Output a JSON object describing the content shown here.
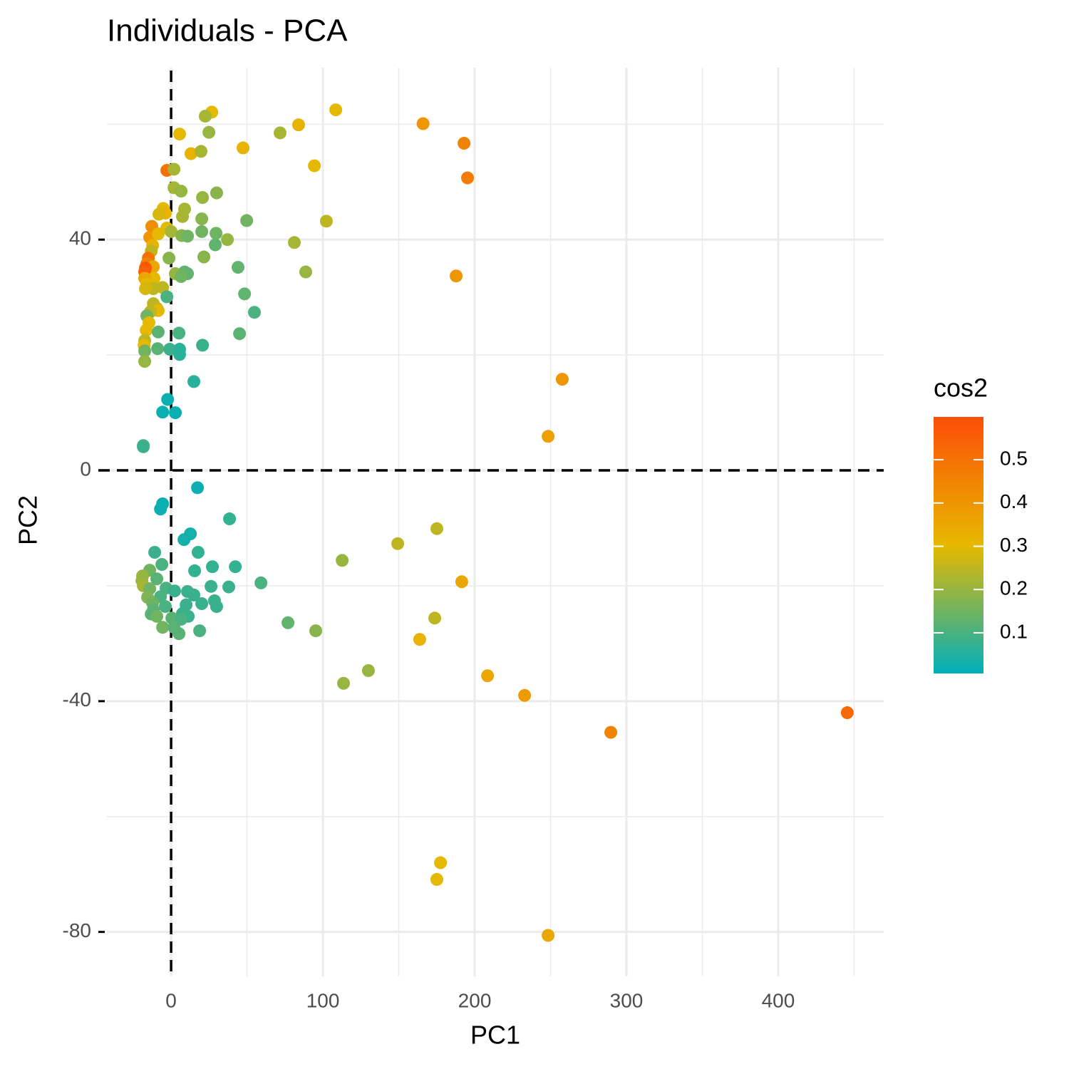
{
  "chart_data": {
    "type": "scatter",
    "title": "Individuals - PCA",
    "x_label": "PC1",
    "y_label": "PC2",
    "xlim": [
      -42.3,
      469.5
    ],
    "ylim": [
      -87.7,
      69.8
    ],
    "xticks": [
      0,
      100,
      200,
      300,
      400
    ],
    "yticks": [
      -80,
      -40,
      0,
      40
    ],
    "x_minor_ticks": [
      50,
      150,
      250,
      350,
      450
    ],
    "y_minor_ticks": [
      -60,
      -20,
      20,
      60
    ],
    "grid": true,
    "hline": 0,
    "vline": 0,
    "color_scale": {
      "title": "cos2",
      "colors": [
        "#00AFBB",
        "#E7B800",
        "#FC4E07"
      ],
      "limits": [
        0.006,
        0.599
      ],
      "ticks": [
        0.1,
        0.2,
        0.3,
        0.4,
        0.5
      ]
    },
    "x": [
      108.5,
      26.8,
      22.5,
      166,
      84,
      71.8,
      24.9,
      5.6,
      193,
      47.4,
      13.1,
      19.7,
      94.4,
      -2.8,
      1.9,
      195.3,
      1.9,
      6.6,
      30,
      20.7,
      8.9,
      -5.2,
      -3.8,
      -8,
      20.2,
      49.8,
      102.3,
      7.5,
      -12.7,
      -2.8,
      0,
      7,
      10.8,
      20.2,
      29.6,
      -14.1,
      -8.5,
      37.1,
      81.2,
      29.1,
      -12.2,
      -13.1,
      21.6,
      -1.4,
      -15,
      -16,
      -11.7,
      44.1,
      -16.9,
      -17.4,
      88.7,
      2.8,
      8.9,
      10.8,
      6.6,
      187.8,
      -11.3,
      -17.4,
      -16,
      -5.6,
      -11.7,
      -16.9,
      48.4,
      -2.8,
      -11.7,
      -9.4,
      -8.5,
      -13.6,
      54.9,
      -16,
      -14.6,
      -16.4,
      -8.5,
      5.2,
      45.1,
      -17.4,
      -17.8,
      20.7,
      -8.9,
      -0.9,
      5.6,
      -17.4,
      5.6,
      -17.4,
      257.7,
      15,
      -2.3,
      -5.6,
      2.8,
      248.4,
      -18.3,
      -18.3,
      17.4,
      -5.6,
      -7,
      38.5,
      175.1,
      12.7,
      8.5,
      149.3,
      -10.8,
      17.8,
      112.7,
      -6.1,
      42.3,
      27.2,
      15.5,
      -14.1,
      -18.8,
      -19.2,
      191.5,
      59.2,
      -9.4,
      -18.3,
      26.3,
      38,
      -3.3,
      -14.1,
      10.8,
      2.3,
      15,
      -7,
      -15.5,
      -12.2,
      20.2,
      28.6,
      30,
      9.9,
      -3.8,
      -11.7,
      -13.1,
      7.5,
      11.3,
      173.7,
      -9.4,
      0.5,
      6.6,
      77,
      -5.6,
      1.9,
      18.8,
      95.3,
      5.2,
      163.8,
      130,
      208.5,
      113.6,
      232.9,
      445.5,
      289.7,
      177.5,
      175.1,
      248.4
    ],
    "y": [
      62.5,
      62.1,
      61.4,
      60.1,
      59.9,
      58.5,
      58.6,
      58.3,
      56.7,
      55.9,
      54.9,
      55.3,
      52.8,
      52,
      52.2,
      50.7,
      49,
      48.4,
      48.1,
      47.3,
      45.3,
      45.4,
      44.6,
      44.4,
      43.6,
      43.3,
      43.2,
      44,
      42.3,
      42,
      41.4,
      40.7,
      40.6,
      41.4,
      41.1,
      40.4,
      41,
      40,
      39.5,
      39.1,
      39,
      38,
      37,
      36.8,
      36.8,
      35.8,
      35.3,
      35.2,
      35.1,
      34.4,
      34.4,
      34.1,
      34.4,
      34.1,
      33.6,
      33.7,
      33.3,
      33.3,
      32.3,
      31.7,
      31.5,
      31.5,
      30.6,
      30.1,
      28.9,
      28.1,
      27.7,
      27.5,
      27.4,
      26.8,
      25.6,
      24.3,
      24,
      23.8,
      23.7,
      22.5,
      21.7,
      21.7,
      21.1,
      21,
      21,
      20.7,
      20.1,
      18.9,
      15.8,
      15.4,
      12.3,
      10.1,
      10,
      5.9,
      4.3,
      4.1,
      -3,
      -5.8,
      -6.7,
      -8.4,
      -10.1,
      -11,
      -12,
      -12.7,
      -14.2,
      -14.2,
      -15.6,
      -16.3,
      -16.7,
      -16.7,
      -17.4,
      -17.3,
      -18.3,
      -19.1,
      -19.3,
      -19.5,
      -18.8,
      -20,
      -20.1,
      -20.2,
      -20.4,
      -20.5,
      -21,
      -20.9,
      -21.6,
      -21.9,
      -22,
      -23,
      -23.1,
      -22.6,
      -23.6,
      -23.3,
      -23.6,
      -24.2,
      -24.9,
      -24.8,
      -25.3,
      -25.6,
      -25.3,
      -25.6,
      -25.8,
      -26.4,
      -27.2,
      -27.2,
      -27.8,
      -27.8,
      -28.3,
      -29.3,
      -34.7,
      -35.6,
      -36.9,
      -39,
      -42,
      -45.4,
      -68,
      -70.9,
      -80.6
    ],
    "cos2": [
      0.3,
      0.3,
      0.22,
      0.4,
      0.32,
      0.22,
      0.2,
      0.3,
      0.45,
      0.32,
      0.32,
      0.22,
      0.3,
      0.5,
      0.22,
      0.47,
      0.22,
      0.2,
      0.18,
      0.2,
      0.22,
      0.3,
      0.32,
      0.28,
      0.18,
      0.15,
      0.25,
      0.22,
      0.42,
      0.3,
      0.22,
      0.18,
      0.15,
      0.15,
      0.15,
      0.4,
      0.3,
      0.2,
      0.22,
      0.13,
      0.32,
      0.25,
      0.18,
      0.18,
      0.5,
      0.45,
      0.35,
      0.13,
      0.57,
      0.55,
      0.2,
      0.2,
      0.13,
      0.13,
      0.15,
      0.4,
      0.3,
      0.35,
      0.3,
      0.25,
      0.25,
      0.28,
      0.13,
      0.1,
      0.25,
      0.25,
      0.3,
      0.25,
      0.1,
      0.15,
      0.3,
      0.3,
      0.12,
      0.1,
      0.12,
      0.25,
      0.3,
      0.08,
      0.12,
      0.08,
      0.06,
      0.15,
      0.06,
      0.2,
      0.4,
      0.06,
      0.02,
      0.02,
      0.02,
      0.37,
      0.1,
      0.08,
      0.02,
      0.02,
      0.02,
      0.07,
      0.25,
      0.03,
      0.03,
      0.25,
      0.08,
      0.07,
      0.2,
      0.1,
      0.07,
      0.07,
      0.07,
      0.15,
      0.2,
      0.2,
      0.35,
      0.1,
      0.12,
      0.22,
      0.08,
      0.08,
      0.1,
      0.15,
      0.08,
      0.08,
      0.08,
      0.1,
      0.17,
      0.15,
      0.08,
      0.08,
      0.08,
      0.08,
      0.1,
      0.12,
      0.12,
      0.08,
      0.08,
      0.25,
      0.15,
      0.12,
      0.1,
      0.13,
      0.15,
      0.12,
      0.1,
      0.18,
      0.12,
      0.32,
      0.2,
      0.35,
      0.2,
      0.38,
      0.52,
      0.45,
      0.3,
      0.3,
      0.35
    ]
  }
}
